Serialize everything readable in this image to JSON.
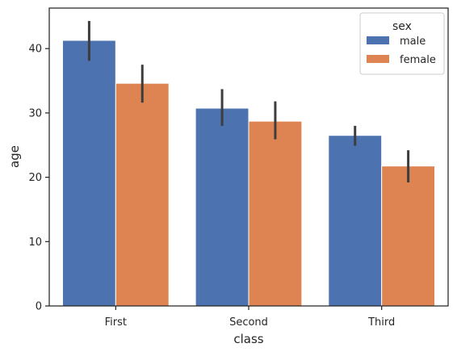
{
  "chart_data": {
    "type": "bar",
    "categories": [
      "First",
      "Second",
      "Third"
    ],
    "series": [
      {
        "name": "male",
        "values": [
          41.28,
          30.74,
          26.51
        ],
        "ci_low": [
          38.1,
          28.0,
          24.9
        ],
        "ci_high": [
          44.3,
          33.7,
          28.0
        ]
      },
      {
        "name": "female",
        "values": [
          34.61,
          28.72,
          21.75
        ],
        "ci_low": [
          31.6,
          25.9,
          19.2
        ],
        "ci_high": [
          37.5,
          31.8,
          24.2
        ]
      }
    ],
    "xlabel": "class",
    "ylabel": "age",
    "ylim": [
      0,
      46.3
    ],
    "yticks": [
      0,
      10,
      20,
      30,
      40
    ],
    "legend": {
      "title": "sex",
      "placement": "top-right"
    },
    "grid": false,
    "colors": {
      "male": "#4c72b0",
      "female": "#dd8452",
      "errorbar": "#3d3d3d",
      "axes": "#262626"
    }
  }
}
